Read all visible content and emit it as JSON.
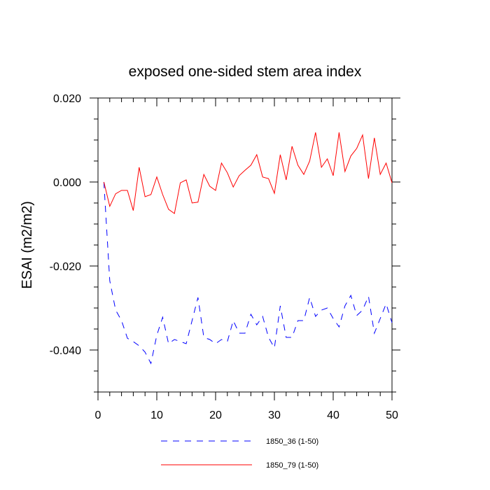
{
  "chart_data": {
    "type": "line",
    "title": "exposed one-sided stem area index",
    "xlabel": "",
    "ylabel": "ESAI  (m2/m2)",
    "xlim": [
      0,
      50
    ],
    "ylim": [
      -0.05,
      0.02
    ],
    "xticks": [
      0,
      10,
      20,
      30,
      40,
      50
    ],
    "xtick_labels": [
      "0",
      "10",
      "20",
      "30",
      "40",
      "50"
    ],
    "yticks": [
      0.02,
      0.0,
      -0.02,
      -0.04
    ],
    "ytick_labels": [
      "0.020",
      "0.000",
      "-0.020",
      "-0.040"
    ],
    "grid": false,
    "legend_position": "bottom-center",
    "series": [
      {
        "name": "1850_36 (1-50)",
        "color": "#0000ff",
        "style": "dashed",
        "x": [
          1,
          2,
          3,
          4,
          5,
          6,
          7,
          8,
          9,
          10,
          11,
          12,
          13,
          14,
          15,
          16,
          17,
          18,
          19,
          20,
          21,
          22,
          23,
          24,
          25,
          26,
          27,
          28,
          29,
          30,
          31,
          32,
          33,
          34,
          35,
          36,
          37,
          38,
          39,
          40,
          41,
          42,
          43,
          44,
          45,
          46,
          47,
          48,
          49,
          50
        ],
        "values": [
          0.0,
          -0.0235,
          -0.0305,
          -0.033,
          -0.0372,
          -0.038,
          -0.039,
          -0.0405,
          -0.0432,
          -0.0365,
          -0.0322,
          -0.0385,
          -0.0375,
          -0.038,
          -0.0385,
          -0.033,
          -0.0275,
          -0.037,
          -0.0375,
          -0.0385,
          -0.0375,
          -0.038,
          -0.033,
          -0.036,
          -0.036,
          -0.0315,
          -0.034,
          -0.032,
          -0.037,
          -0.0395,
          -0.0295,
          -0.037,
          -0.037,
          -0.033,
          -0.033,
          -0.0275,
          -0.032,
          -0.0305,
          -0.03,
          -0.0325,
          -0.0345,
          -0.0295,
          -0.027,
          -0.0318,
          -0.0305,
          -0.0272,
          -0.036,
          -0.0325,
          -0.029,
          -0.0335
        ]
      },
      {
        "name": "1850_79 (1-50)",
        "color": "#ff0000",
        "style": "solid",
        "x": [
          1,
          2,
          3,
          4,
          5,
          6,
          7,
          8,
          9,
          10,
          11,
          12,
          13,
          14,
          15,
          16,
          17,
          18,
          19,
          20,
          21,
          22,
          23,
          24,
          25,
          26,
          27,
          28,
          29,
          30,
          31,
          32,
          33,
          34,
          35,
          36,
          37,
          38,
          39,
          40,
          41,
          42,
          43,
          44,
          45,
          46,
          47,
          48,
          49,
          50
        ],
        "values": [
          0.0,
          -0.0058,
          -0.0028,
          -0.002,
          -0.002,
          -0.0068,
          0.0035,
          -0.0035,
          -0.003,
          0.0012,
          -0.003,
          -0.0065,
          -0.0075,
          -0.0002,
          0.0005,
          -0.005,
          -0.0048,
          0.0018,
          -0.001,
          -0.002,
          0.0045,
          0.0022,
          -0.0012,
          0.0015,
          0.0028,
          0.004,
          0.0065,
          0.0012,
          0.0008,
          -0.0027,
          0.0065,
          0.0005,
          0.0085,
          0.004,
          0.0018,
          0.005,
          0.0118,
          0.0035,
          0.0055,
          0.0015,
          0.0118,
          0.0025,
          0.0062,
          0.008,
          0.0112,
          0.0008,
          0.0105,
          0.0018,
          0.0045,
          -0.0002
        ]
      }
    ]
  }
}
